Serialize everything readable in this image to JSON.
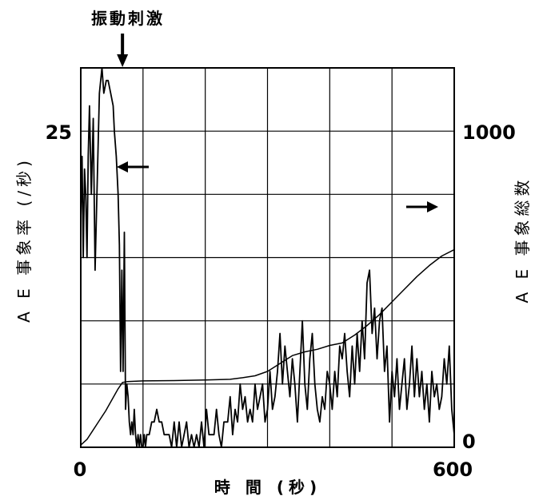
{
  "chart_data": {
    "type": "line",
    "annotation": "振動刺激",
    "xlabel": "時 間 (秒)",
    "ylabel_left": "A E 事象率 (/秒)",
    "ylabel_right": "A E 事象総数",
    "x_ticks": [
      "0",
      "600"
    ],
    "y_left_ticks": [
      "25"
    ],
    "y_right_ticks": [
      "0",
      "1000"
    ],
    "xlim": [
      0,
      600
    ],
    "ylim_left": [
      0,
      30
    ],
    "ylim_right": [
      0,
      1200
    ],
    "grid": true,
    "stimulus_time": 67,
    "series": [
      {
        "axis": "left",
        "points": [
          [
            0,
            18
          ],
          [
            2,
            23
          ],
          [
            4,
            15
          ],
          [
            6,
            22
          ],
          [
            8,
            20
          ],
          [
            10,
            15
          ],
          [
            12,
            23
          ],
          [
            14,
            27
          ],
          [
            17,
            20
          ],
          [
            20,
            26
          ],
          [
            23,
            14
          ],
          [
            26,
            20
          ],
          [
            30,
            28
          ],
          [
            34,
            30
          ],
          [
            37,
            28
          ],
          [
            41,
            29
          ],
          [
            44,
            29
          ],
          [
            48,
            28
          ],
          [
            52,
            27
          ],
          [
            54,
            25
          ],
          [
            57,
            23
          ],
          [
            60,
            20
          ],
          [
            62,
            16
          ],
          [
            64,
            6
          ],
          [
            66,
            14
          ],
          [
            68,
            6
          ],
          [
            70,
            17
          ],
          [
            72,
            3
          ],
          [
            74,
            5
          ],
          [
            76,
            4
          ],
          [
            78,
            2
          ],
          [
            80,
            1
          ],
          [
            82,
            2
          ],
          [
            84,
            1
          ],
          [
            86,
            3
          ],
          [
            88,
            1
          ],
          [
            90,
            0
          ],
          [
            92,
            1
          ],
          [
            94,
            0
          ],
          [
            96,
            1
          ],
          [
            98,
            0
          ],
          [
            100,
            0
          ],
          [
            102,
            1
          ],
          [
            104,
            0
          ],
          [
            106,
            1
          ],
          [
            110,
            1
          ],
          [
            114,
            2
          ],
          [
            118,
            2
          ],
          [
            122,
            3
          ],
          [
            126,
            2
          ],
          [
            130,
            2
          ],
          [
            134,
            1
          ],
          [
            138,
            1
          ],
          [
            142,
            1
          ],
          [
            146,
            0
          ],
          [
            150,
            2
          ],
          [
            154,
            0
          ],
          [
            158,
            2
          ],
          [
            162,
            0
          ],
          [
            166,
            1
          ],
          [
            170,
            2
          ],
          [
            174,
            0
          ],
          [
            178,
            1
          ],
          [
            182,
            0
          ],
          [
            186,
            1
          ],
          [
            190,
            0
          ],
          [
            194,
            2
          ],
          [
            198,
            0
          ],
          [
            202,
            3
          ],
          [
            206,
            1
          ],
          [
            210,
            1
          ],
          [
            214,
            1
          ],
          [
            218,
            3
          ],
          [
            222,
            1
          ],
          [
            226,
            0
          ],
          [
            230,
            2
          ],
          [
            236,
            2
          ],
          [
            240,
            4
          ],
          [
            244,
            1
          ],
          [
            248,
            3
          ],
          [
            252,
            2
          ],
          [
            256,
            5
          ],
          [
            260,
            3
          ],
          [
            264,
            4
          ],
          [
            268,
            2
          ],
          [
            272,
            3
          ],
          [
            276,
            2
          ],
          [
            280,
            5
          ],
          [
            284,
            3
          ],
          [
            288,
            4
          ],
          [
            292,
            5
          ],
          [
            296,
            2
          ],
          [
            300,
            3
          ],
          [
            304,
            6
          ],
          [
            308,
            3
          ],
          [
            312,
            4
          ],
          [
            316,
            6
          ],
          [
            320,
            9
          ],
          [
            324,
            5
          ],
          [
            328,
            8
          ],
          [
            332,
            6
          ],
          [
            336,
            4
          ],
          [
            340,
            7
          ],
          [
            344,
            5
          ],
          [
            348,
            2
          ],
          [
            352,
            6
          ],
          [
            356,
            10
          ],
          [
            360,
            5
          ],
          [
            364,
            3
          ],
          [
            368,
            7
          ],
          [
            372,
            9
          ],
          [
            376,
            5
          ],
          [
            380,
            3
          ],
          [
            384,
            2
          ],
          [
            388,
            4
          ],
          [
            392,
            3
          ],
          [
            396,
            6
          ],
          [
            400,
            5
          ],
          [
            404,
            3
          ],
          [
            408,
            6
          ],
          [
            412,
            4
          ],
          [
            416,
            8
          ],
          [
            420,
            7
          ],
          [
            424,
            9
          ],
          [
            428,
            6
          ],
          [
            432,
            4
          ],
          [
            436,
            8
          ],
          [
            440,
            5
          ],
          [
            444,
            9
          ],
          [
            448,
            6
          ],
          [
            452,
            10
          ],
          [
            456,
            7
          ],
          [
            460,
            13
          ],
          [
            464,
            14
          ],
          [
            468,
            9
          ],
          [
            472,
            11
          ],
          [
            476,
            7
          ],
          [
            480,
            10
          ],
          [
            484,
            11
          ],
          [
            488,
            6
          ],
          [
            492,
            8
          ],
          [
            496,
            2
          ],
          [
            500,
            6
          ],
          [
            504,
            4
          ],
          [
            508,
            7
          ],
          [
            512,
            3
          ],
          [
            516,
            5
          ],
          [
            520,
            7
          ],
          [
            524,
            3
          ],
          [
            528,
            5
          ],
          [
            532,
            8
          ],
          [
            536,
            4
          ],
          [
            540,
            7
          ],
          [
            544,
            4
          ],
          [
            548,
            6
          ],
          [
            552,
            3
          ],
          [
            556,
            5
          ],
          [
            560,
            2
          ],
          [
            564,
            6
          ],
          [
            568,
            4
          ],
          [
            572,
            5
          ],
          [
            576,
            3
          ],
          [
            580,
            4
          ],
          [
            584,
            7
          ],
          [
            588,
            5
          ],
          [
            592,
            8
          ],
          [
            596,
            3
          ],
          [
            600,
            1
          ]
        ]
      },
      {
        "axis": "right",
        "points": [
          [
            0,
            7
          ],
          [
            10,
            25
          ],
          [
            20,
            55
          ],
          [
            30,
            85
          ],
          [
            40,
            115
          ],
          [
            50,
            150
          ],
          [
            60,
            185
          ],
          [
            67,
            205
          ],
          [
            75,
            208
          ],
          [
            100,
            210
          ],
          [
            150,
            211
          ],
          [
            200,
            213
          ],
          [
            240,
            215
          ],
          [
            260,
            220
          ],
          [
            280,
            226
          ],
          [
            300,
            240
          ],
          [
            320,
            265
          ],
          [
            340,
            290
          ],
          [
            360,
            302
          ],
          [
            380,
            310
          ],
          [
            400,
            322
          ],
          [
            420,
            330
          ],
          [
            440,
            355
          ],
          [
            460,
            385
          ],
          [
            480,
            420
          ],
          [
            500,
            460
          ],
          [
            520,
            500
          ],
          [
            540,
            540
          ],
          [
            560,
            575
          ],
          [
            580,
            605
          ],
          [
            600,
            625
          ]
        ]
      }
    ]
  }
}
